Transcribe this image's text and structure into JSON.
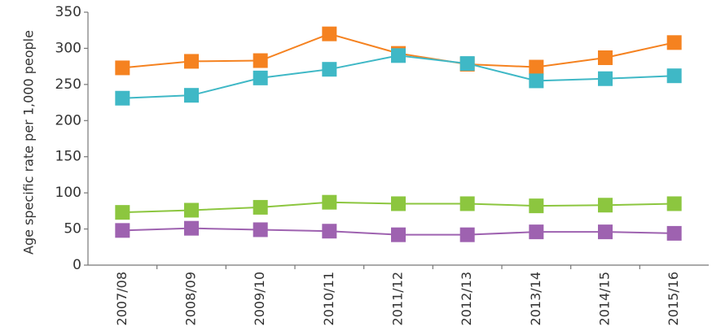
{
  "chart_data": {
    "type": "line",
    "y_label": "Age specific rate per 1,000 people",
    "categories": [
      "2007/08",
      "2008/09",
      "2009/10",
      "2010/11",
      "2011/12",
      "2012/13",
      "2013/14",
      "2014/15",
      "2015/16"
    ],
    "series": [
      {
        "color": "#f58220",
        "values": [
          273,
          282,
          283,
          320,
          293,
          278,
          274,
          287,
          308
        ]
      },
      {
        "color": "#3fb8c6",
        "values": [
          231,
          235,
          259,
          271,
          290,
          279,
          255,
          258,
          262
        ]
      },
      {
        "color": "#8cc63f",
        "values": [
          73,
          76,
          80,
          87,
          85,
          85,
          82,
          83,
          85
        ]
      },
      {
        "color": "#9e62b0",
        "values": [
          48,
          51,
          49,
          47,
          42,
          42,
          46,
          46,
          44
        ]
      }
    ],
    "ylim": [
      0,
      350
    ],
    "yticks": [
      0,
      50,
      100,
      150,
      200,
      250,
      300,
      350
    ],
    "grid": false
  }
}
